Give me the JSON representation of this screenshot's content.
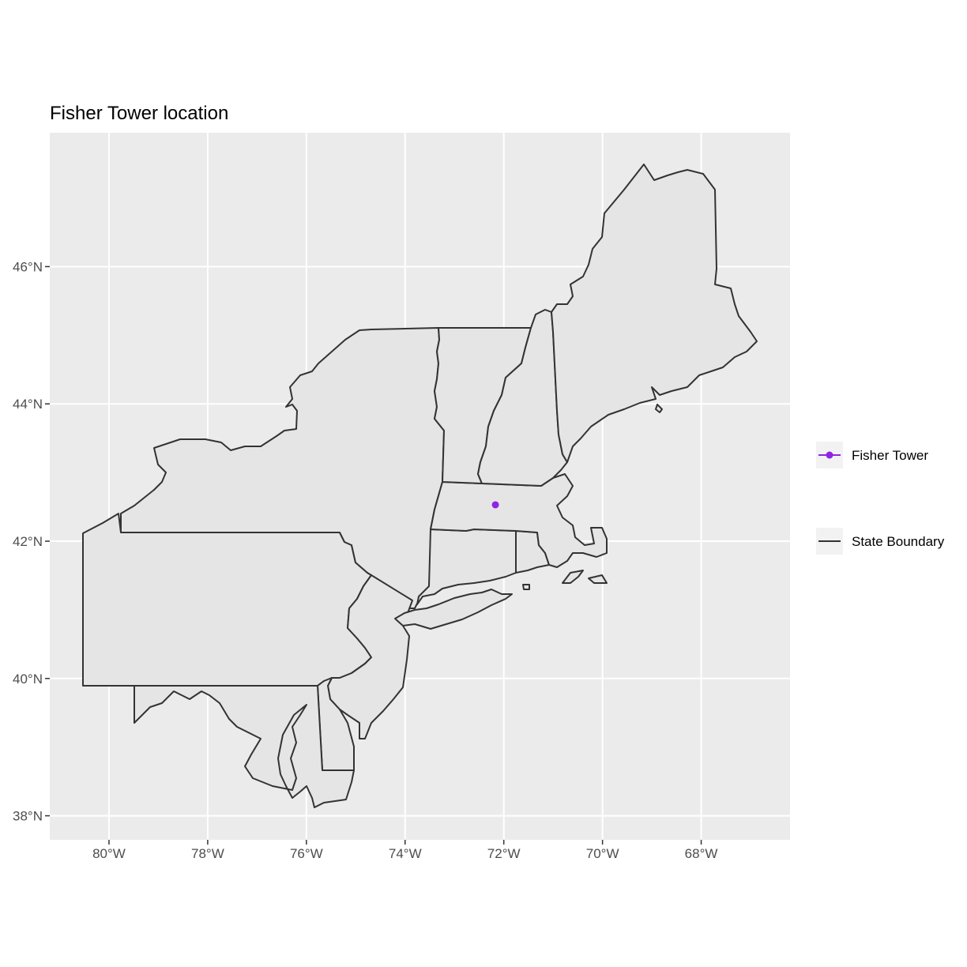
{
  "title": "Fisher Tower location",
  "x_axis": {
    "ticks": [
      -80,
      -78,
      -76,
      -74,
      -72,
      -70,
      -68
    ],
    "tick_labels": [
      "80°W",
      "78°W",
      "76°W",
      "74°W",
      "72°W",
      "70°W",
      "68°W"
    ],
    "range": [
      -81.2,
      -66.2
    ]
  },
  "y_axis": {
    "ticks": [
      38,
      40,
      42,
      44,
      46
    ],
    "tick_labels": [
      "38°N",
      "40°N",
      "42°N",
      "44°N",
      "46°N"
    ],
    "range": [
      37.65,
      47.95
    ]
  },
  "grid": true,
  "legend_position": "right",
  "legend": [
    {
      "label": "Fisher Tower",
      "symbol": "point-line",
      "color": "#8e24e6"
    },
    {
      "label": "State Boundary",
      "symbol": "line",
      "color": "#333333"
    }
  ],
  "point": {
    "name": "Fisher Tower",
    "lon": -72.17,
    "lat": 42.53,
    "color": "#8e24e6"
  },
  "colors": {
    "panel_background": "#ebebeb",
    "land_fill": "#e5e5e5",
    "boundary": "#333333",
    "grid": "#ffffff"
  }
}
